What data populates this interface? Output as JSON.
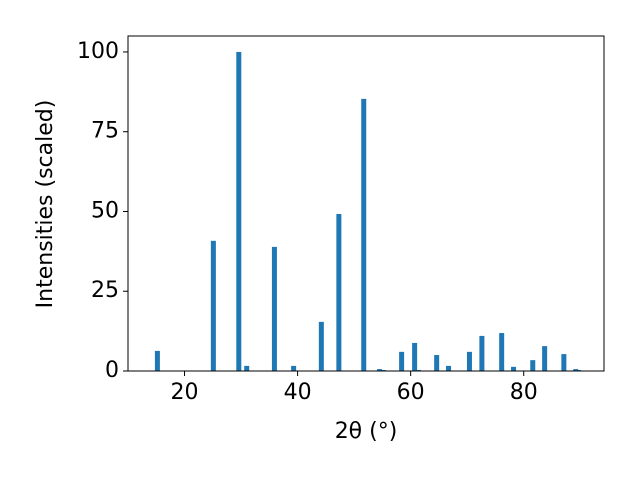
{
  "chart_data": {
    "type": "bar",
    "x": [
      15.2,
      25.1,
      29.6,
      31.0,
      35.9,
      39.3,
      44.2,
      47.3,
      51.7,
      54.5,
      55.2,
      58.4,
      60.7,
      61.4,
      64.6,
      66.7,
      70.4,
      72.6,
      76.1,
      78.2,
      81.6,
      83.7,
      87.1,
      89.2,
      89.7
    ],
    "values": [
      6.3,
      40.8,
      100,
      1.6,
      38.9,
      1.6,
      15.4,
      49.2,
      85.3,
      0.6,
      0.3,
      6.0,
      8.8,
      0.3,
      5.0,
      1.6,
      6.0,
      11.0,
      11.9,
      1.3,
      3.4,
      7.8,
      5.3,
      0.6,
      0.3
    ],
    "color": "#1f77b4",
    "xlabel": "2θ (°)",
    "ylabel": "Intensities (scaled)",
    "xlim": [
      10,
      94.2
    ],
    "xticks": [
      20,
      40,
      60,
      80
    ],
    "ylim": [
      0,
      105
    ],
    "yticks": [
      0,
      25,
      50,
      75,
      100
    ]
  }
}
